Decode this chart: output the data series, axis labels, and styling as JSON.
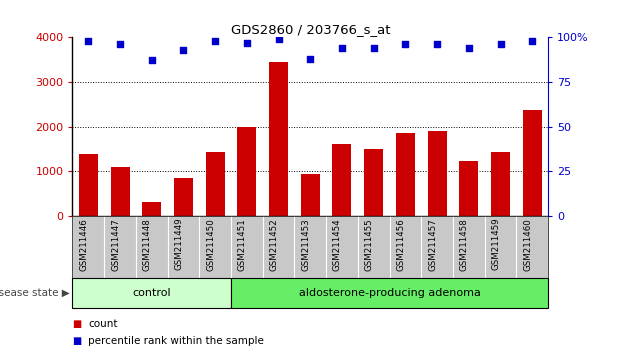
{
  "title": "GDS2860 / 203766_s_at",
  "categories": [
    "GSM211446",
    "GSM211447",
    "GSM211448",
    "GSM211449",
    "GSM211450",
    "GSM211451",
    "GSM211452",
    "GSM211453",
    "GSM211454",
    "GSM211455",
    "GSM211456",
    "GSM211457",
    "GSM211458",
    "GSM211459",
    "GSM211460"
  ],
  "bar_values": [
    1380,
    1100,
    310,
    840,
    1420,
    2000,
    3450,
    930,
    1600,
    1500,
    1850,
    1900,
    1220,
    1420,
    2370
  ],
  "percentile_values": [
    98,
    96,
    87,
    93,
    98,
    97,
    99,
    88,
    94,
    94,
    96,
    96,
    94,
    96,
    98
  ],
  "bar_color": "#cc0000",
  "dot_color": "#0000cc",
  "ylim_left": [
    0,
    4000
  ],
  "ylim_right": [
    0,
    100
  ],
  "yticks_left": [
    0,
    1000,
    2000,
    3000,
    4000
  ],
  "yticks_right": [
    0,
    25,
    50,
    75,
    100
  ],
  "ytick_labels_right": [
    "0",
    "25",
    "50",
    "75",
    "100%"
  ],
  "grid_values": [
    1000,
    2000,
    3000
  ],
  "control_count": 5,
  "adenoma_count": 10,
  "control_label": "control",
  "adenoma_label": "aldosterone-producing adenoma",
  "disease_state_label": "disease state",
  "legend_bar_label": "count",
  "legend_dot_label": "percentile rank within the sample",
  "control_color": "#ccffcc",
  "adenoma_color": "#66ee66",
  "tick_area_color": "#c8c8c8",
  "background_color": "#ffffff"
}
